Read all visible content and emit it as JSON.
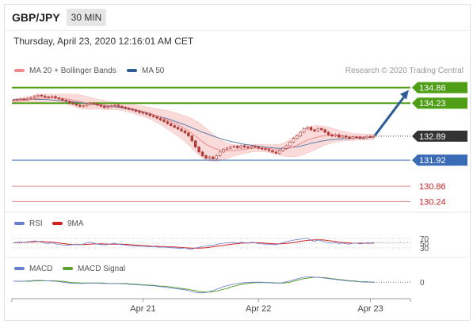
{
  "header": {
    "pair": "GBP/JPY",
    "timeframe": "30 MIN",
    "timestamp": "Thursday, April 23, 2020 12:16:01 AM CET"
  },
  "legend": {
    "ma20": "MA 20 + Bollinger Bands",
    "ma50": "MA 50",
    "credit": "Research © 2020 Trading Central",
    "rsi": "RSI",
    "rsi9": "9MA",
    "macd": "MACD",
    "macd_signal": "MACD Signal"
  },
  "colors": {
    "candle": "#b03a36",
    "ma20": "#ee8a8a",
    "bollinger_fill": "#fbdada",
    "ma50": "#5d7ea8",
    "resistance": "#4f9f16",
    "support": "#3a6bb7",
    "deep_support": "#e08a8a",
    "arrow": "#2c5c95",
    "current": "#333333",
    "rsi": "#6a7fd1",
    "rsi9": "#d02020",
    "macd": "#6a7fd1",
    "macd_signal": "#5aa02c"
  },
  "chart_data": [
    {
      "type": "candlestick",
      "ylim": [
        129.9,
        135.2
      ],
      "x_ticks": [
        "Apr 21",
        "Apr 22",
        "Apr 23"
      ],
      "levels": [
        {
          "label": "134.86",
          "value": 134.86,
          "kind": "resistance"
        },
        {
          "label": "134.23",
          "value": 134.23,
          "kind": "resistance"
        },
        {
          "label": "132.89",
          "value": 132.89,
          "kind": "current"
        },
        {
          "label": "131.92",
          "value": 131.92,
          "kind": "support"
        },
        {
          "label": "130.86",
          "value": 130.86,
          "kind": "deep_support"
        },
        {
          "label": "130.24",
          "value": 130.24,
          "kind": "deep_support"
        }
      ],
      "close": [
        134.35,
        134.38,
        134.4,
        134.37,
        134.42,
        134.45,
        134.5,
        134.55,
        134.52,
        134.48,
        134.46,
        134.5,
        134.44,
        134.4,
        134.35,
        134.3,
        134.25,
        134.2,
        134.15,
        134.1,
        134.12,
        134.18,
        134.22,
        134.2,
        134.15,
        134.1,
        134.05,
        134.08,
        134.12,
        134.15,
        134.1,
        134.06,
        134.02,
        133.98,
        133.95,
        133.9,
        133.85,
        133.82,
        133.78,
        133.72,
        133.68,
        133.62,
        133.55,
        133.48,
        133.4,
        133.32,
        133.25,
        133.18,
        133.1,
        133.02,
        132.9,
        132.7,
        132.45,
        132.25,
        132.1,
        132.0,
        132.05,
        131.98,
        132.1,
        132.25,
        132.35,
        132.4,
        132.45,
        132.48,
        132.42,
        132.5,
        132.45,
        132.42,
        132.48,
        132.45,
        132.4,
        132.38,
        132.35,
        132.3,
        132.25,
        132.2,
        132.3,
        132.4,
        132.5,
        132.65,
        132.8,
        132.9,
        133.05,
        133.2,
        133.25,
        133.15,
        133.1,
        133.2,
        133.15,
        133.05,
        132.95,
        132.9,
        132.95,
        132.85,
        132.9,
        132.85,
        132.8,
        132.86,
        132.85,
        132.8,
        132.82,
        132.88,
        132.86,
        132.89
      ],
      "ma20": [
        134.3,
        134.31,
        134.33,
        134.34,
        134.36,
        134.38,
        134.4,
        134.42,
        134.43,
        134.44,
        134.44,
        134.45,
        134.44,
        134.43,
        134.42,
        134.4,
        134.38,
        134.35,
        134.32,
        134.29,
        134.26,
        134.24,
        134.22,
        134.21,
        134.19,
        134.17,
        134.15,
        134.13,
        134.12,
        134.11,
        134.1,
        134.08,
        134.06,
        134.03,
        134.0,
        133.97,
        133.93,
        133.9,
        133.86,
        133.82,
        133.77,
        133.72,
        133.67,
        133.61,
        133.55,
        133.49,
        133.42,
        133.35,
        133.27,
        133.19,
        133.1,
        133.0,
        132.89,
        132.78,
        132.67,
        132.57,
        132.49,
        132.42,
        132.37,
        132.33,
        132.31,
        132.3,
        132.3,
        132.31,
        132.32,
        132.34,
        132.36,
        132.38,
        132.4,
        132.41,
        132.41,
        132.41,
        132.4,
        132.39,
        132.37,
        132.35,
        132.34,
        132.35,
        132.37,
        132.41,
        132.46,
        132.52,
        132.59,
        132.66,
        132.73,
        132.78,
        132.82,
        132.86,
        132.89,
        132.91,
        132.92,
        132.92,
        132.91,
        132.9,
        132.89,
        132.88,
        132.87,
        132.86,
        132.86,
        132.86,
        132.86,
        132.86,
        132.86,
        132.86
      ],
      "bb_width": [
        0.1,
        0.1,
        0.11,
        0.12,
        0.13,
        0.14,
        0.15,
        0.16,
        0.16,
        0.16,
        0.15,
        0.15,
        0.15,
        0.16,
        0.18,
        0.2,
        0.22,
        0.24,
        0.26,
        0.27,
        0.27,
        0.26,
        0.24,
        0.22,
        0.2,
        0.19,
        0.18,
        0.17,
        0.16,
        0.15,
        0.15,
        0.15,
        0.16,
        0.17,
        0.18,
        0.19,
        0.2,
        0.21,
        0.22,
        0.24,
        0.26,
        0.28,
        0.31,
        0.34,
        0.37,
        0.4,
        0.43,
        0.46,
        0.49,
        0.52,
        0.56,
        0.6,
        0.64,
        0.66,
        0.66,
        0.64,
        0.6,
        0.55,
        0.5,
        0.44,
        0.38,
        0.32,
        0.27,
        0.23,
        0.2,
        0.18,
        0.17,
        0.16,
        0.15,
        0.15,
        0.15,
        0.15,
        0.15,
        0.16,
        0.18,
        0.2,
        0.22,
        0.26,
        0.3,
        0.35,
        0.4,
        0.45,
        0.49,
        0.51,
        0.52,
        0.51,
        0.49,
        0.46,
        0.42,
        0.38,
        0.34,
        0.3,
        0.26,
        0.23,
        0.2,
        0.18,
        0.16,
        0.14,
        0.13,
        0.12,
        0.12,
        0.11,
        0.11,
        0.11
      ],
      "ma50": [
        134.38,
        134.38,
        134.38,
        134.38,
        134.38,
        134.38,
        134.38,
        134.38,
        134.38,
        134.38,
        134.37,
        134.36,
        134.35,
        134.34,
        134.33,
        134.31,
        134.3,
        134.28,
        134.27,
        134.25,
        134.23,
        134.22,
        134.2,
        134.18,
        134.16,
        134.15,
        134.13,
        134.11,
        134.09,
        134.08,
        134.06,
        134.04,
        134.02,
        133.99,
        133.96,
        133.93,
        133.9,
        133.87,
        133.84,
        133.8,
        133.76,
        133.72,
        133.68,
        133.64,
        133.6,
        133.55,
        133.5,
        133.45,
        133.4,
        133.35,
        133.29,
        133.23,
        133.17,
        133.11,
        133.05,
        133.0,
        132.95,
        132.9,
        132.85,
        132.8,
        132.76,
        132.72,
        132.68,
        132.65,
        132.62,
        132.59,
        132.56,
        132.54,
        132.52,
        132.5,
        132.48,
        132.46,
        132.44,
        132.43,
        132.42,
        132.41,
        132.4,
        132.4,
        132.41,
        132.42,
        132.44,
        132.46,
        132.49,
        132.52,
        132.56,
        132.6,
        132.63,
        132.66,
        132.69,
        132.71,
        132.73,
        132.75,
        132.76,
        132.77,
        132.78,
        132.79,
        132.8,
        132.81,
        132.82,
        132.83,
        132.83,
        132.84,
        132.84,
        132.85
      ]
    },
    {
      "type": "line",
      "name": "RSI",
      "levels": [
        70,
        50,
        30
      ],
      "ylim": [
        0,
        100
      ],
      "rsi": [
        52,
        53,
        55,
        52,
        56,
        57,
        60,
        58,
        54,
        50,
        49,
        53,
        47,
        45,
        43,
        41,
        42,
        44,
        45,
        43,
        46,
        52,
        55,
        50,
        46,
        44,
        42,
        45,
        48,
        50,
        46,
        44,
        42,
        40,
        39,
        38,
        37,
        38,
        36,
        35,
        36,
        34,
        33,
        34,
        32,
        31,
        30,
        29,
        28,
        30,
        26,
        25,
        30,
        33,
        35,
        38,
        42,
        40,
        45,
        48,
        50,
        52,
        53,
        54,
        50,
        55,
        52,
        50,
        54,
        52,
        48,
        47,
        46,
        45,
        44,
        43,
        48,
        53,
        56,
        60,
        63,
        65,
        67,
        70,
        71,
        62,
        58,
        63,
        60,
        55,
        52,
        50,
        53,
        48,
        51,
        48,
        46,
        50,
        50,
        47,
        49,
        52,
        51,
        53
      ],
      "rsi9": [
        52,
        52,
        53,
        53,
        54,
        55,
        56,
        57,
        57,
        56,
        55,
        54,
        53,
        51,
        49,
        47,
        45,
        44,
        44,
        44,
        44,
        45,
        46,
        47,
        47,
        47,
        47,
        46,
        46,
        46,
        46,
        46,
        45,
        44,
        43,
        42,
        41,
        40,
        39,
        38,
        37,
        37,
        36,
        36,
        35,
        34,
        34,
        33,
        32,
        31,
        30,
        29,
        29,
        29,
        30,
        31,
        33,
        35,
        37,
        39,
        41,
        43,
        45,
        47,
        48,
        50,
        51,
        51,
        52,
        52,
        52,
        51,
        50,
        49,
        48,
        47,
        47,
        48,
        49,
        51,
        53,
        55,
        58,
        60,
        62,
        63,
        64,
        64,
        64,
        63,
        61,
        59,
        57,
        55,
        53,
        52,
        51,
        50,
        50,
        50,
        50,
        50,
        50,
        51
      ]
    },
    {
      "type": "line",
      "name": "MACD",
      "levels": [
        0
      ],
      "ylim": [
        -0.28,
        0.18
      ],
      "macd": [
        0.02,
        0.02,
        0.02,
        0.02,
        0.03,
        0.03,
        0.04,
        0.04,
        0.04,
        0.03,
        0.03,
        0.02,
        0.02,
        0.01,
        0.0,
        -0.01,
        -0.02,
        -0.03,
        -0.03,
        -0.03,
        -0.03,
        -0.02,
        -0.02,
        -0.02,
        -0.02,
        -0.03,
        -0.03,
        -0.03,
        -0.03,
        -0.03,
        -0.03,
        -0.04,
        -0.04,
        -0.05,
        -0.05,
        -0.06,
        -0.06,
        -0.07,
        -0.07,
        -0.08,
        -0.08,
        -0.09,
        -0.1,
        -0.11,
        -0.12,
        -0.13,
        -0.14,
        -0.15,
        -0.16,
        -0.17,
        -0.19,
        -0.21,
        -0.23,
        -0.24,
        -0.24,
        -0.23,
        -0.21,
        -0.19,
        -0.16,
        -0.13,
        -0.1,
        -0.08,
        -0.06,
        -0.04,
        -0.03,
        -0.02,
        -0.01,
        -0.01,
        0.0,
        0.0,
        0.0,
        0.0,
        -0.01,
        -0.01,
        -0.02,
        -0.02,
        -0.02,
        -0.01,
        0.01,
        0.03,
        0.05,
        0.07,
        0.09,
        0.11,
        0.12,
        0.12,
        0.11,
        0.11,
        0.1,
        0.09,
        0.08,
        0.07,
        0.06,
        0.05,
        0.04,
        0.03,
        0.02,
        0.02,
        0.01,
        0.01,
        0.0,
        0.0,
        0.0,
        0.0
      ],
      "signal": [
        0.02,
        0.02,
        0.02,
        0.02,
        0.02,
        0.02,
        0.03,
        0.03,
        0.03,
        0.03,
        0.03,
        0.03,
        0.03,
        0.02,
        0.02,
        0.01,
        0.0,
        -0.01,
        -0.01,
        -0.02,
        -0.02,
        -0.02,
        -0.02,
        -0.02,
        -0.02,
        -0.02,
        -0.02,
        -0.03,
        -0.03,
        -0.03,
        -0.03,
        -0.03,
        -0.03,
        -0.04,
        -0.04,
        -0.05,
        -0.05,
        -0.06,
        -0.06,
        -0.07,
        -0.07,
        -0.08,
        -0.09,
        -0.09,
        -0.1,
        -0.11,
        -0.12,
        -0.13,
        -0.14,
        -0.15,
        -0.16,
        -0.18,
        -0.19,
        -0.21,
        -0.22,
        -0.22,
        -0.22,
        -0.21,
        -0.2,
        -0.18,
        -0.16,
        -0.14,
        -0.11,
        -0.09,
        -0.07,
        -0.05,
        -0.04,
        -0.03,
        -0.02,
        -0.01,
        -0.01,
        -0.01,
        -0.01,
        -0.01,
        -0.01,
        -0.02,
        -0.02,
        -0.02,
        -0.01,
        0.0,
        0.02,
        0.04,
        0.06,
        0.08,
        0.09,
        0.1,
        0.11,
        0.11,
        0.1,
        0.1,
        0.09,
        0.08,
        0.07,
        0.06,
        0.05,
        0.04,
        0.03,
        0.03,
        0.02,
        0.01,
        0.01,
        0.01,
        0.0,
        0.0
      ]
    }
  ]
}
